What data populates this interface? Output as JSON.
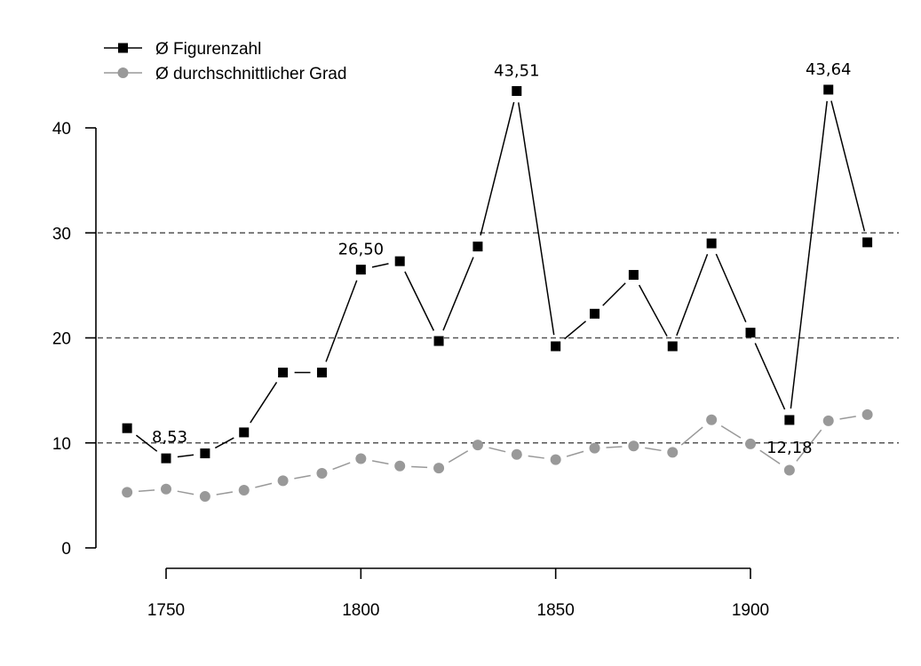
{
  "chart_data": {
    "type": "line",
    "title": "",
    "xlabel": "",
    "ylabel": "",
    "xlim": [
      1740,
      1930
    ],
    "ylim": [
      0,
      40
    ],
    "x_ticks": [
      1750,
      1800,
      1850,
      1900
    ],
    "y_ticks": [
      0,
      10,
      20,
      30,
      40
    ],
    "x_tick_labels": [
      "1750",
      "1800",
      "1850",
      "1900"
    ],
    "y_tick_labels": [
      "0",
      "10",
      "20",
      "30",
      "40"
    ],
    "grid": {
      "horizontal_dashed_at": [
        10,
        20,
        30
      ]
    },
    "legend_position": "top-left",
    "x": [
      1740,
      1750,
      1760,
      1770,
      1780,
      1790,
      1800,
      1810,
      1820,
      1830,
      1840,
      1850,
      1860,
      1870,
      1880,
      1890,
      1900,
      1910,
      1920,
      1930
    ],
    "series": [
      {
        "name": "Ø Figurenzahl",
        "color": "#000000",
        "marker": "square",
        "values": [
          11.4,
          8.53,
          9.0,
          11.0,
          16.7,
          16.7,
          26.5,
          27.3,
          19.7,
          28.7,
          43.51,
          19.2,
          22.3,
          26.0,
          19.2,
          29.0,
          20.5,
          12.18,
          43.64,
          29.1
        ]
      },
      {
        "name": "Ø durchschnittlicher Grad",
        "color": "#999999",
        "marker": "circle",
        "values": [
          5.3,
          5.6,
          4.9,
          5.5,
          6.4,
          7.1,
          8.5,
          7.8,
          7.6,
          9.8,
          8.9,
          8.4,
          9.5,
          9.7,
          9.1,
          12.2,
          9.9,
          7.4,
          12.1,
          12.7
        ]
      }
    ],
    "annotations": [
      {
        "series": 0,
        "x": 1750,
        "text": "8,53",
        "side": "above-right"
      },
      {
        "series": 0,
        "x": 1800,
        "text": "26,50",
        "side": "above"
      },
      {
        "series": 0,
        "x": 1840,
        "text": "43,51",
        "side": "above"
      },
      {
        "series": 0,
        "x": 1910,
        "text": "12,18",
        "side": "above"
      },
      {
        "series": 0,
        "x": 1920,
        "text": "43,64",
        "side": "above"
      }
    ]
  }
}
